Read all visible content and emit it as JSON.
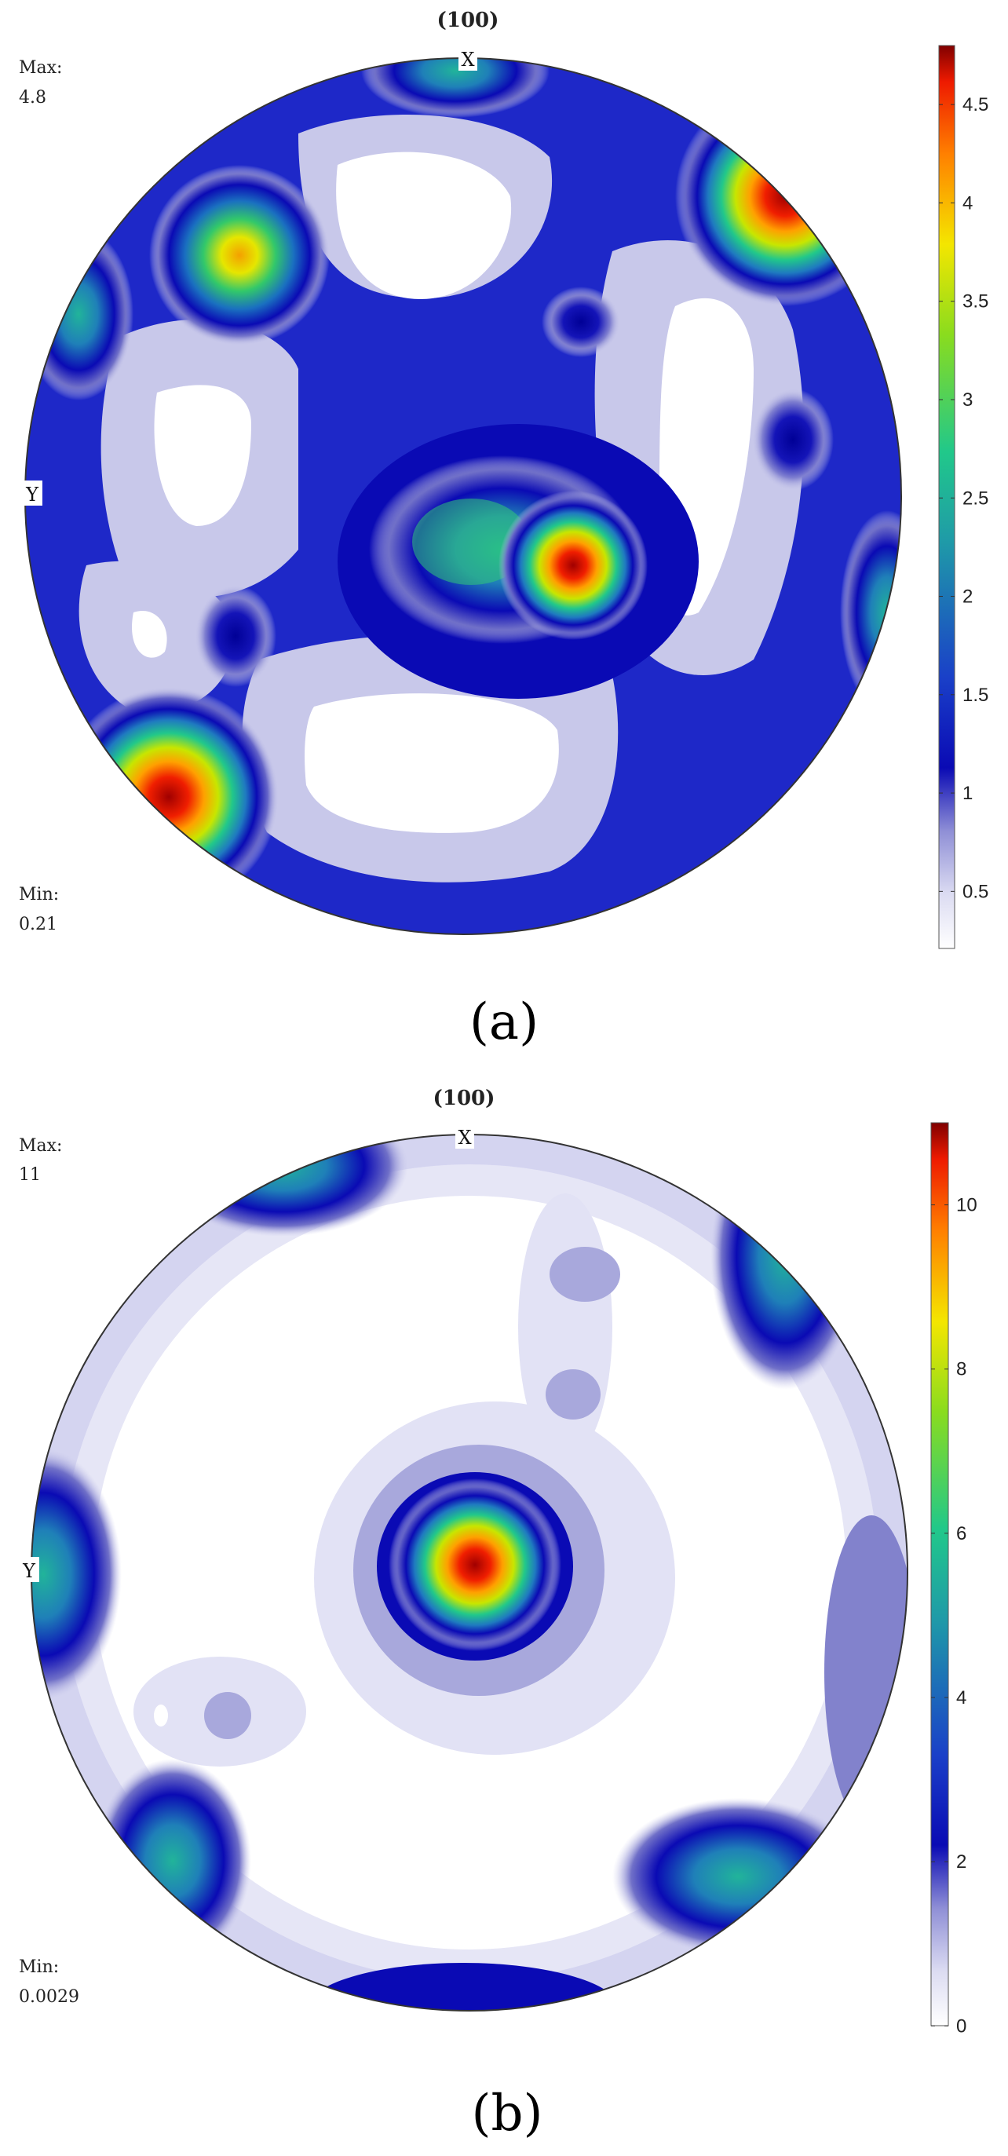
{
  "chart_data": [
    {
      "type": "heatmap",
      "panel": "(a)",
      "title": "(100)",
      "x_label": "X",
      "y_label": "Y",
      "max_label": "Max:",
      "max_value": "4.8",
      "min_label": "Min:",
      "min_value": "0.21",
      "colorbar": {
        "min": 0.21,
        "max": 4.8,
        "ticks": [
          0.5,
          1,
          1.5,
          2,
          2.5,
          3,
          3.5,
          4,
          4.5
        ]
      },
      "caption": "(a)"
    },
    {
      "type": "heatmap",
      "panel": "(b)",
      "title": "(100)",
      "x_label": "X",
      "y_label": "Y",
      "max_label": "Max:",
      "max_value": "11",
      "min_label": "Min:",
      "min_value": "0.0029",
      "colorbar": {
        "min": 0.0029,
        "max": 11,
        "ticks": [
          0,
          2,
          4,
          6,
          8,
          10
        ]
      },
      "caption": "(b)"
    }
  ]
}
